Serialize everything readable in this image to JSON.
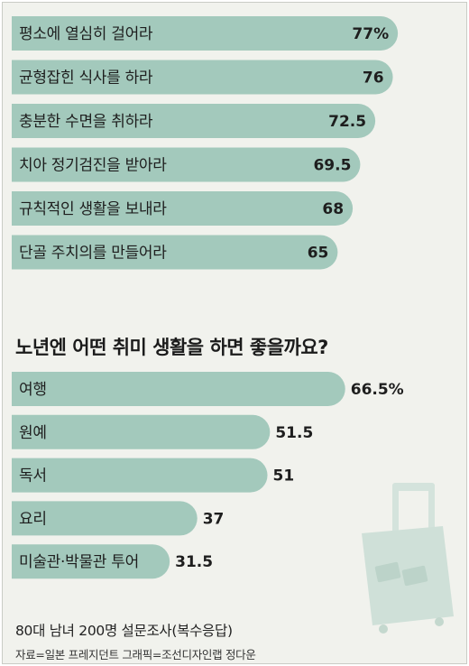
{
  "chart_data": [
    {
      "type": "bar",
      "orientation": "horizontal",
      "title": "",
      "categories": [
        "평소에 열심히 걸어라",
        "균형잡힌 식사를 하라",
        "충분한 수면을 취하라",
        "치아 정기검진을 받아라",
        "규칙적인 생활을 보내라",
        "단골 주치의를 만들어라"
      ],
      "values": [
        77,
        76,
        72.5,
        69.5,
        68,
        65
      ],
      "value_labels": [
        "77%",
        "76",
        "72.5",
        "69.5",
        "68",
        "65"
      ],
      "bar_color": "#a3c9bc"
    },
    {
      "type": "bar",
      "orientation": "horizontal",
      "title": "노년엔 어떤 취미 생활을 하면 좋을까요?",
      "categories": [
        "여행",
        "원예",
        "독서",
        "요리",
        "미술관·박물관 투어"
      ],
      "values": [
        66.5,
        51.5,
        51,
        37,
        31.5
      ],
      "value_labels": [
        "66.5%",
        "51.5",
        "51",
        "37",
        "31.5"
      ],
      "bar_color": "#a3c9bc"
    }
  ],
  "footer": {
    "survey": "80대 남녀 200명 설문조사(복수응답)",
    "source": "자료=일본 프레지던트  그래픽=조선디자인랩 정다운"
  },
  "decoration": {
    "illustration": "suitcase-icon"
  }
}
